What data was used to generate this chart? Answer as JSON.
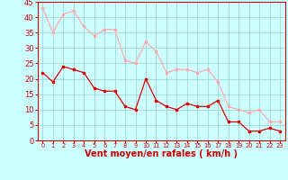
{
  "x": [
    0,
    1,
    2,
    3,
    4,
    5,
    6,
    7,
    8,
    9,
    10,
    11,
    12,
    13,
    14,
    15,
    16,
    17,
    18,
    19,
    20,
    21,
    22,
    23
  ],
  "wind_avg": [
    22,
    19,
    24,
    23,
    22,
    17,
    16,
    16,
    11,
    10,
    20,
    13,
    11,
    10,
    12,
    11,
    11,
    13,
    6,
    6,
    3,
    3,
    4,
    3
  ],
  "wind_gust": [
    43,
    35,
    41,
    42,
    37,
    34,
    36,
    36,
    26,
    25,
    32,
    29,
    22,
    23,
    23,
    22,
    23,
    19,
    11,
    10,
    9,
    10,
    6,
    6
  ],
  "avg_color": "#dd0000",
  "gust_color": "#ffaaaa",
  "bg_color": "#ccffff",
  "grid_color": "#99cccc",
  "xlabel": "Vent moyen/en rafales ( km/h )",
  "xlabel_color": "#cc0000",
  "xlabel_fontsize": 7,
  "tick_color": "#cc0000",
  "axis_color": "#cc0000",
  "ylim": [
    0,
    45
  ],
  "yticks": [
    0,
    5,
    10,
    15,
    20,
    25,
    30,
    35,
    40,
    45
  ]
}
